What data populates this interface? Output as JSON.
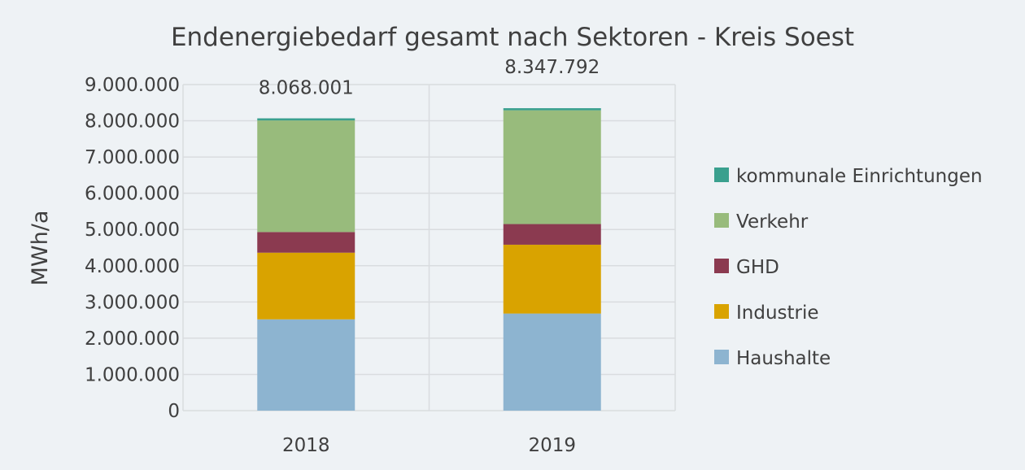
{
  "chart_data": {
    "type": "bar",
    "stacked": true,
    "title": "Endenergiebedarf gesamt nach Sektoren  - Kreis Soest",
    "ylabel": "MWh/a",
    "xlabel": "",
    "ylim": [
      0,
      9000000
    ],
    "ytick_step": 1000000,
    "ytick_labels": [
      "0",
      "1.000.000",
      "2.000.000",
      "3.000.000",
      "4.000.000",
      "5.000.000",
      "6.000.000",
      "7.000.000",
      "8.000.000",
      "9.000.000"
    ],
    "categories": [
      "2018",
      "2019"
    ],
    "totals": [
      8068001,
      8347792
    ],
    "total_labels": [
      "8.068.001",
      "8.347.792"
    ],
    "series": [
      {
        "name": "Haushalte",
        "color": "#8db4d0",
        "values": [
          2520000,
          2680000
        ]
      },
      {
        "name": "Industrie",
        "color": "#d9a300",
        "values": [
          1840000,
          1900000
        ]
      },
      {
        "name": "GHD",
        "color": "#8b3a50",
        "values": [
          570000,
          570000
        ]
      },
      {
        "name": "Verkehr",
        "color": "#98bb7c",
        "values": [
          3080000,
          3140000
        ]
      },
      {
        "name": "kommunale Einrichtungen",
        "color": "#3aa08e",
        "values": [
          58001,
          57792
        ]
      }
    ],
    "legend_position": "right",
    "legend_order": [
      "kommunale Einrichtungen",
      "Verkehr",
      "GHD",
      "Industrie",
      "Haushalte"
    ],
    "grid": true
  }
}
